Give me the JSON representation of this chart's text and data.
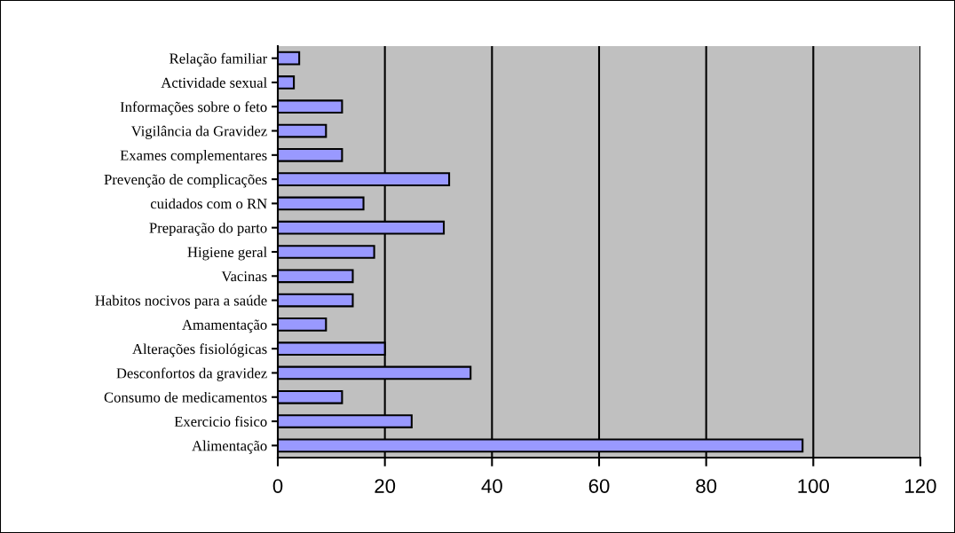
{
  "chart_data": {
    "type": "bar",
    "orientation": "horizontal",
    "categories": [
      "Relação familiar",
      "Actividade sexual",
      "Informações sobre o feto",
      "Vigilância da Gravidez",
      "Exames complementares",
      "Prevenção de complicações",
      "cuidados com o RN",
      "Preparação do parto",
      "Higiene geral",
      "Vacinas",
      "Habitos nocivos para a saúde",
      "Amamentação",
      "Alterações fisiológicas",
      "Desconfortos da gravidez",
      "Consumo de medicamentos",
      "Exercicio fisico",
      "Alimentação"
    ],
    "values": [
      4,
      3,
      12,
      9,
      12,
      32,
      16,
      31,
      18,
      14,
      14,
      9,
      20,
      36,
      12,
      25,
      98
    ],
    "color": "#9999ff",
    "xlim": [
      0,
      120
    ],
    "xticks": [
      0,
      20,
      40,
      60,
      80,
      100,
      120
    ],
    "grid": "x",
    "legend": false
  }
}
